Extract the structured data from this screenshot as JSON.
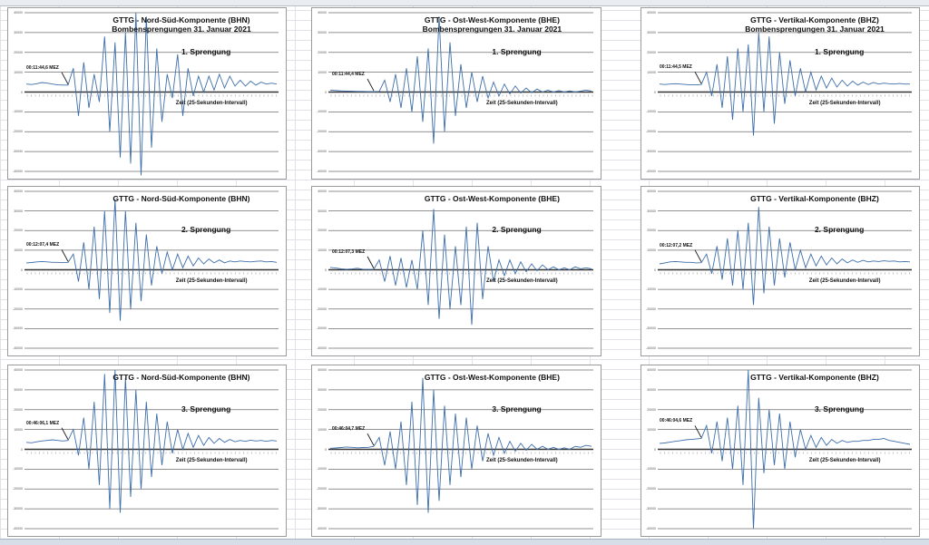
{
  "app": {
    "type": "spreadsheet",
    "line_color": "#3d6eaa",
    "grid_color": "#6e6e6e"
  },
  "chart_data": [
    {
      "type": "line",
      "title": [
        "GTTG - Nord-Süd-Komponente (BHN)",
        "Bombensprengungen 31. Januar 2021"
      ],
      "label": "1. Sprengung",
      "xlabel": "Zeit  (25-Sekunden-Intervall)",
      "annotation": "00:11:44,6 MEZ",
      "yticks": [
        "40000",
        "30000",
        "20000",
        "10000",
        "0",
        "-10000",
        "-20000",
        "-30000",
        "-40000"
      ],
      "ylim": [
        -40000,
        40000
      ],
      "values": [
        4000,
        3800,
        4200,
        4800,
        4500,
        4000,
        3600,
        3500,
        3500,
        12000,
        -12000,
        15000,
        -8000,
        9000,
        -5000,
        28000,
        -20000,
        25000,
        -33000,
        30000,
        -36000,
        40000,
        -42000,
        38000,
        -28000,
        22000,
        -15000,
        9000,
        -3000,
        19000,
        -12000,
        12000,
        -2000,
        8000,
        0,
        8000,
        1000,
        9000,
        2000,
        8000,
        3000,
        6000,
        3000,
        5500,
        3500,
        5000,
        4000,
        4500,
        4000
      ]
    },
    {
      "type": "line",
      "title": [
        "GTTG - Ost-West-Komponente (BHE)",
        "Bombensprengungen 31. Januar 2021"
      ],
      "label": "1. Sprengung",
      "xlabel": "Zeit  (25-Sekunden-Intervall)",
      "annotation": "00:11:44,4 MEZ",
      "yticks": [
        "40000",
        "30000",
        "20000",
        "10000",
        "0",
        "-10000",
        "-20000",
        "-30000",
        "-40000"
      ],
      "ylim": [
        -40000,
        40000
      ],
      "values": [
        1000,
        800,
        600,
        500,
        400,
        300,
        300,
        200,
        200,
        300,
        6000,
        -5000,
        9000,
        -8000,
        12000,
        -10000,
        18000,
        -15000,
        22000,
        -26000,
        38000,
        -20000,
        25000,
        -12000,
        14000,
        -8000,
        10000,
        -5000,
        8000,
        -3000,
        5000,
        -2000,
        4000,
        -1000,
        3000,
        -500,
        2000,
        -300,
        1500,
        0,
        1000,
        0,
        800,
        0,
        600,
        0,
        500,
        1000,
        500
      ]
    },
    {
      "type": "line",
      "title": [
        "GTTG - Vertikal-Komponente (BHZ)",
        "Bombensprengungen 31. Januar 2021"
      ],
      "label": "1. Sprengung",
      "xlabel": "Zeit  (25-Sekunden-Intervall)",
      "annotation": "00:11:44,5 MEZ",
      "yticks": [
        "40000",
        "30000",
        "20000",
        "10000",
        "0",
        "-10000",
        "-20000",
        "-30000",
        "-40000"
      ],
      "ylim": [
        -40000,
        40000
      ],
      "values": [
        4000,
        3800,
        4000,
        4200,
        4000,
        3800,
        3600,
        3600,
        3800,
        10000,
        -2000,
        14000,
        -8000,
        18000,
        -14000,
        22000,
        -10000,
        24000,
        -22000,
        30000,
        -10000,
        28000,
        -16000,
        20000,
        -6000,
        16000,
        -2000,
        12000,
        0,
        10000,
        1000,
        8000,
        2000,
        7000,
        2500,
        6000,
        3000,
        5500,
        3500,
        5000,
        3800,
        4800,
        4000,
        4500,
        4200,
        4000,
        4300,
        4000,
        4000
      ]
    },
    {
      "type": "line",
      "title": [
        "GTTG - Nord-Süd-Komponente (BHN)"
      ],
      "label": "2. Sprengung",
      "xlabel": "Zeit  (25-Sekunden-Intervall)",
      "annotation": "00:12:07,4 MEZ",
      "yticks": [
        "40000",
        "30000",
        "20000",
        "10000",
        "0",
        "-10000",
        "-20000",
        "-30000",
        "-40000"
      ],
      "ylim": [
        -40000,
        40000
      ],
      "values": [
        3500,
        3700,
        4000,
        4200,
        4000,
        3800,
        3800,
        3600,
        3800,
        8000,
        -6000,
        14000,
        -10000,
        22000,
        -15000,
        30000,
        -22000,
        36000,
        -26000,
        30000,
        -20000,
        24000,
        -16000,
        18000,
        -8000,
        12000,
        -2000,
        9000,
        0,
        8000,
        1000,
        7000,
        2000,
        6000,
        3000,
        5500,
        3500,
        5000,
        3500,
        4500,
        4000,
        4500,
        4200,
        4000,
        4300,
        4500,
        4000,
        4200,
        3800
      ]
    },
    {
      "type": "line",
      "title": [
        "GTTG - Ost-West-Komponente (BHE)"
      ],
      "label": "2. Sprengung",
      "xlabel": "Zeit  (25-Sekunden-Intervall)",
      "annotation": "00:12:07,3 MEZ",
      "yticks": [
        "40000",
        "30000",
        "20000",
        "10000",
        "0",
        "-10000",
        "-20000",
        "-30000",
        "-40000"
      ],
      "ylim": [
        -40000,
        40000
      ],
      "values": [
        1200,
        900,
        500,
        300,
        400,
        800,
        300,
        200,
        300,
        5000,
        -6000,
        7000,
        -8000,
        6000,
        -9000,
        5000,
        -10000,
        20000,
        -18000,
        31000,
        -25000,
        18000,
        -20000,
        12000,
        -18000,
        22000,
        -28000,
        24000,
        -15000,
        12000,
        -6000,
        5000,
        -3000,
        5000,
        -2000,
        4000,
        -1000,
        3000,
        -500,
        2500,
        0,
        1500,
        0,
        1000,
        0,
        1500,
        500,
        1000,
        500
      ]
    },
    {
      "type": "line",
      "title": [
        "GTTG - Vertikal-Komponente (BHZ)"
      ],
      "label": "2. Sprengung",
      "xlabel": "Zeit  (25-Sekunden-Intervall)",
      "annotation": "00:12:07,2 MEZ",
      "yticks": [
        "40000",
        "30000",
        "20000",
        "10000",
        "0",
        "-10000",
        "-20000",
        "-30000",
        "-40000"
      ],
      "ylim": [
        -40000,
        40000
      ],
      "values": [
        3000,
        3500,
        4000,
        4200,
        4000,
        3800,
        3800,
        3500,
        3600,
        8000,
        -2000,
        12000,
        -5000,
        16000,
        -8000,
        20000,
        -10000,
        24000,
        -18000,
        32000,
        -12000,
        22000,
        -8000,
        16000,
        -4000,
        14000,
        0,
        10000,
        1000,
        8000,
        2000,
        7000,
        2500,
        6000,
        3000,
        5500,
        3500,
        5000,
        3800,
        4800,
        4000,
        4500,
        4200,
        4600,
        4300,
        4500,
        4000,
        4200,
        4000
      ]
    },
    {
      "type": "line",
      "title": [
        "GTTG - Nord-Süd-Komponente (BHN)"
      ],
      "label": "3. Sprengung",
      "xlabel": "Zeit  (25-Sekunden-Intervall)",
      "annotation": "00:46:06,1 MEZ",
      "yticks": [
        "40000",
        "30000",
        "20000",
        "10000",
        "0",
        "-10000",
        "-20000",
        "-30000",
        "-40000"
      ],
      "ylim": [
        -40000,
        40000
      ],
      "values": [
        3500,
        3300,
        3800,
        4200,
        4500,
        4800,
        4500,
        4200,
        4500,
        10000,
        -3000,
        16000,
        -10000,
        24000,
        -18000,
        38000,
        -30000,
        40000,
        -32000,
        36000,
        -24000,
        30000,
        -20000,
        24000,
        -14000,
        18000,
        -8000,
        14000,
        -2000,
        10000,
        0,
        8000,
        1000,
        7000,
        2000,
        6000,
        3000,
        5500,
        3500,
        5000,
        3800,
        4500,
        4000,
        4600,
        4200,
        4500,
        4000,
        4500,
        4200
      ]
    },
    {
      "type": "line",
      "title": [
        "GTTG - Ost-West-Komponente (BHE)"
      ],
      "label": "3. Sprengung",
      "xlabel": "Zeit  (25-Sekunden-Intervall)",
      "annotation": "00:46:04,7 MEZ",
      "yticks": [
        "40000",
        "30000",
        "20000",
        "10000",
        "0",
        "-10000",
        "-20000",
        "-30000",
        "-40000"
      ],
      "ylim": [
        -40000,
        40000
      ],
      "values": [
        500,
        700,
        900,
        1200,
        1000,
        800,
        900,
        1000,
        1500,
        6000,
        -8000,
        9000,
        -10000,
        14000,
        -18000,
        24000,
        -28000,
        36000,
        -32000,
        30000,
        -26000,
        22000,
        -18000,
        18000,
        -14000,
        16000,
        -10000,
        12000,
        -6000,
        8000,
        -3000,
        6000,
        -2000,
        4000,
        -1000,
        3000,
        -500,
        2500,
        0,
        1500,
        0,
        1000,
        0,
        800,
        0,
        1500,
        1000,
        2000,
        1500
      ]
    },
    {
      "type": "line",
      "title": [
        "GTTG - Vertikal-Komponente (BHZ)"
      ],
      "label": "3. Sprengung",
      "xlabel": "Zeit  (25-Sekunden-Intervall)",
      "annotation": "00:46:04,6 MEZ",
      "yticks": [
        "40000",
        "30000",
        "20000",
        "10000",
        "0",
        "-10000",
        "-20000",
        "-30000",
        "-40000"
      ],
      "ylim": [
        -40000,
        40000
      ],
      "values": [
        3000,
        3200,
        3600,
        4000,
        4400,
        4800,
        5000,
        5200,
        5500,
        12000,
        -2000,
        14000,
        -6000,
        16000,
        -10000,
        22000,
        -18000,
        40000,
        -40000,
        26000,
        -12000,
        20000,
        -8000,
        18000,
        -10000,
        14000,
        -4000,
        10000,
        0,
        7000,
        1000,
        6000,
        2000,
        5000,
        3000,
        4500,
        3500,
        4000,
        4000,
        4500,
        4500,
        5000,
        5000,
        5500,
        4500,
        4000,
        3500,
        3000,
        2500
      ]
    }
  ]
}
